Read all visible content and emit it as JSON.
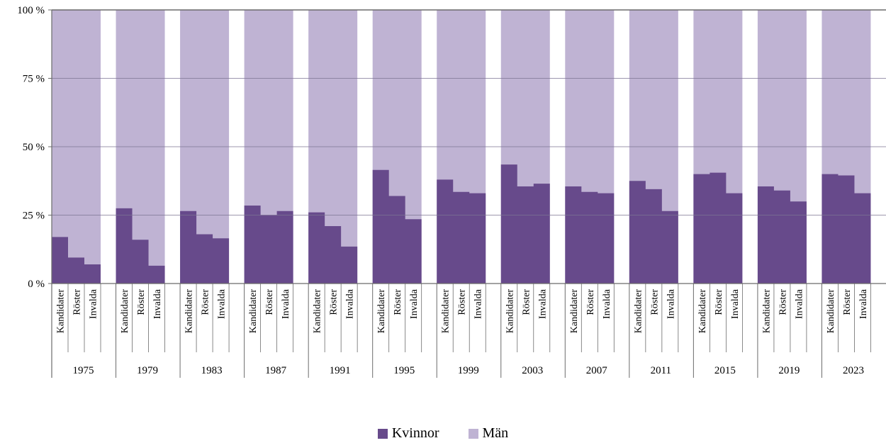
{
  "chart_data": {
    "type": "bar",
    "stacked_percent": true,
    "ylim": [
      0,
      100
    ],
    "y_ticks": [
      "0 %",
      "25 %",
      "50 %",
      "75 %",
      "100 %"
    ],
    "y_tick_values": [
      0,
      25,
      50,
      75,
      100
    ],
    "grid": true,
    "subcategories": [
      "Kandidater",
      "Röster",
      "Invalda"
    ],
    "years": [
      "1975",
      "1979",
      "1983",
      "1987",
      "1991",
      "1995",
      "1999",
      "2003",
      "2007",
      "2011",
      "2015",
      "2019",
      "2023"
    ],
    "series": [
      {
        "name": "Kvinnor",
        "color": "#674A8B",
        "values": [
          [
            17,
            9.5,
            7
          ],
          [
            27.5,
            16,
            6.5
          ],
          [
            26.5,
            18,
            16.5
          ],
          [
            28.5,
            25,
            26.5
          ],
          [
            26,
            21,
            13.5
          ],
          [
            41.5,
            32,
            23.5
          ],
          [
            38,
            33.5,
            33
          ],
          [
            43.5,
            35.5,
            36.5
          ],
          [
            35.5,
            33.5,
            33
          ],
          [
            37.5,
            34.5,
            26.5
          ],
          [
            40,
            40.5,
            33
          ],
          [
            35.5,
            34,
            30
          ],
          [
            40,
            39.5,
            33
          ]
        ]
      },
      {
        "name": "Män",
        "color": "#BFB3D3",
        "values": "remainder to 100 %"
      }
    ]
  },
  "legend": {
    "kvinnor": "Kvinnor",
    "man": "Män",
    "kvinnor_color": "#674A8B",
    "man_color": "#BFB3D3"
  }
}
